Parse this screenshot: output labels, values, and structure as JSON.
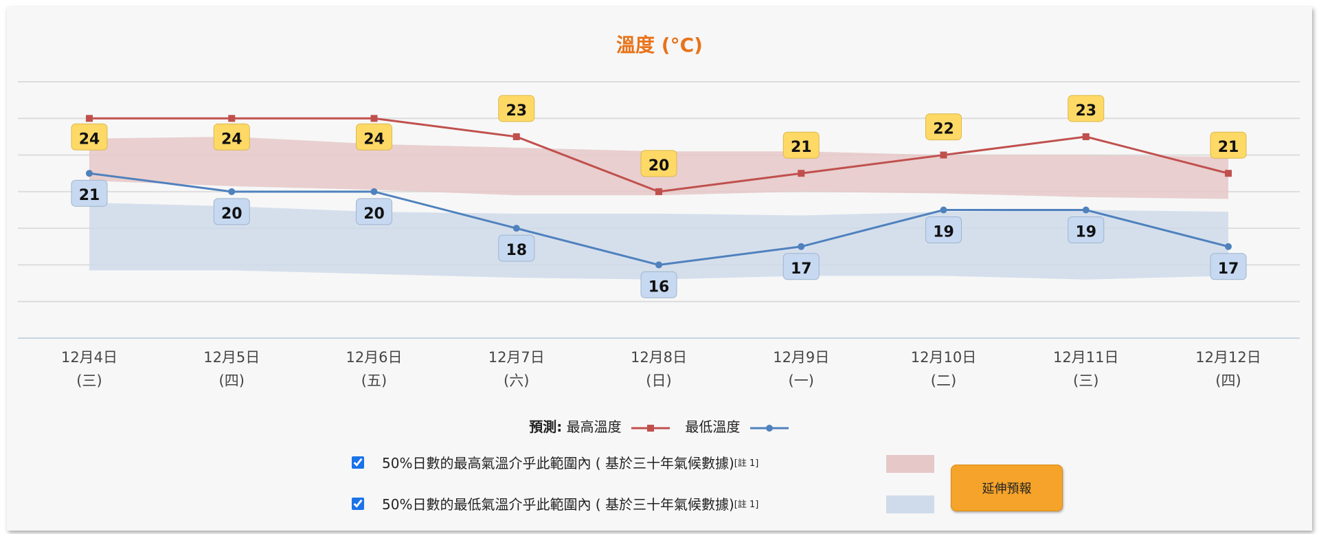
{
  "chart_data": {
    "type": "line",
    "title": "溫度 (°C)",
    "categories": [
      "12月4日",
      "12月5日",
      "12月6日",
      "12月7日",
      "12月8日",
      "12月9日",
      "12月10日",
      "12月11日",
      "12月12日"
    ],
    "weekdays": [
      "(三)",
      "(四)",
      "(五)",
      "(六)",
      "(日)",
      "(一)",
      "(二)",
      "(三)",
      "(四)"
    ],
    "ylim": [
      12,
      26
    ],
    "grid_step": 2,
    "grid": true,
    "y_tick_labels_shown": false,
    "series": [
      {
        "name": "最高溫度",
        "values": [
          24,
          24,
          24,
          23,
          20,
          21,
          22,
          23,
          21
        ],
        "color": "#c0504d",
        "marker": "square",
        "label_color": "#ffd966"
      },
      {
        "name": "最低溫度",
        "values": [
          21,
          20,
          20,
          18,
          16,
          17,
          19,
          19,
          17
        ],
        "color": "#4f81bd",
        "marker": "circle",
        "label_color": "#c6d9f1"
      }
    ],
    "bands": [
      {
        "name": "50%日數的最高氣溫介乎此範圍內 ( 基於三十年氣候數據)",
        "color": "#e6c8c8",
        "upper": [
          22.9,
          23.0,
          22.6,
          22.4,
          22.2,
          22.2,
          22.0,
          22.0,
          21.9
        ],
        "lower": [
          20.6,
          20.3,
          20.1,
          19.8,
          19.8,
          20.0,
          19.9,
          19.7,
          19.6
        ]
      },
      {
        "name": "50%日數的最低氣溫介乎此範圍內 ( 基於三十年氣候數據)",
        "color": "#cfdbea",
        "upper": [
          19.4,
          19.2,
          18.9,
          18.8,
          18.8,
          18.7,
          18.9,
          19.0,
          18.9
        ],
        "lower": [
          15.7,
          15.7,
          15.5,
          15.3,
          15.2,
          15.4,
          15.4,
          15.2,
          15.4
        ]
      }
    ]
  },
  "legend": {
    "prefix": "預測:",
    "max_label": "最高溫度",
    "min_label": "最低溫度"
  },
  "options": [
    {
      "label": "50%日數的最高氣溫介乎此範圍內 ( 基於三十年氣候數據)",
      "note": "[註 1]",
      "checked": true
    },
    {
      "label": "50%日數的最低氣溫介乎此範圍內 ( 基於三十年氣候數據)",
      "note": "[註 1]",
      "checked": true
    }
  ],
  "button": {
    "label": "延伸預報"
  }
}
